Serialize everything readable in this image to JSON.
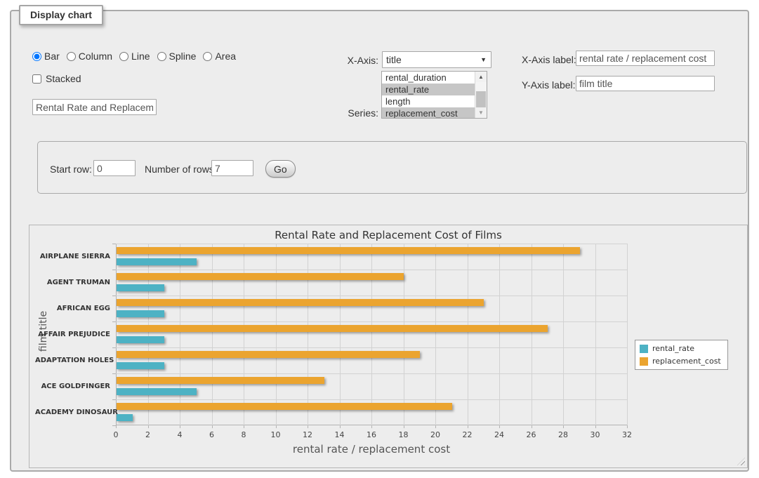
{
  "panel": {
    "legend_title": "Display chart",
    "chart_types": [
      {
        "label": "Bar",
        "selected": true
      },
      {
        "label": "Column",
        "selected": false
      },
      {
        "label": "Line",
        "selected": false
      },
      {
        "label": "Spline",
        "selected": false
      },
      {
        "label": "Area",
        "selected": false
      }
    ],
    "stacked_label": "Stacked",
    "stacked_checked": false,
    "title_input_value": "Rental Rate and Replacement Cost of Films",
    "x_axis": {
      "label": "X-Axis:",
      "value": "title"
    },
    "series_select": {
      "label": "Series:",
      "options": [
        {
          "label": "rental_duration",
          "selected": false
        },
        {
          "label": "rental_rate",
          "selected": true
        },
        {
          "label": "length",
          "selected": false
        },
        {
          "label": "replacement_cost",
          "selected": true
        }
      ]
    },
    "x_axis_label": {
      "label": "X-Axis label:",
      "value": "rental rate / replacement cost"
    },
    "y_axis_label": {
      "label": "Y-Axis label:",
      "value": "film title"
    },
    "rows": {
      "start_label": "Start row:",
      "start_value": "0",
      "count_label": "Number of rows:",
      "count_value": "7",
      "go_label": "Go"
    }
  },
  "icons": {
    "select_arrow": "▼",
    "scroll_up": "▲",
    "scroll_down": "▼"
  },
  "chart_data": {
    "type": "bar",
    "title": "Rental Rate and Replacement Cost of Films",
    "xlabel": "rental rate / replacement cost",
    "ylabel": "film title",
    "categories": [
      "AIRPLANE SIERRA",
      "AGENT TRUMAN",
      "AFRICAN EGG",
      "AFFAIR PREJUDICE",
      "ADAPTATION HOLES",
      "ACE GOLDFINGER",
      "ACADEMY DINOSAUR"
    ],
    "series": [
      {
        "name": "rental_rate",
        "color": "#4DB2C4",
        "values": [
          4.99,
          2.99,
          2.99,
          2.99,
          2.99,
          4.99,
          0.99
        ]
      },
      {
        "name": "replacement_cost",
        "color": "#EBA42F",
        "values": [
          28.99,
          17.99,
          22.99,
          26.99,
          18.99,
          12.99,
          20.99
        ]
      }
    ],
    "xlim": [
      0,
      32
    ],
    "xticks": [
      0,
      2,
      4,
      6,
      8,
      10,
      12,
      14,
      16,
      18,
      20,
      22,
      24,
      26,
      28,
      30,
      32
    ],
    "grid": true,
    "legend_position": "right"
  }
}
